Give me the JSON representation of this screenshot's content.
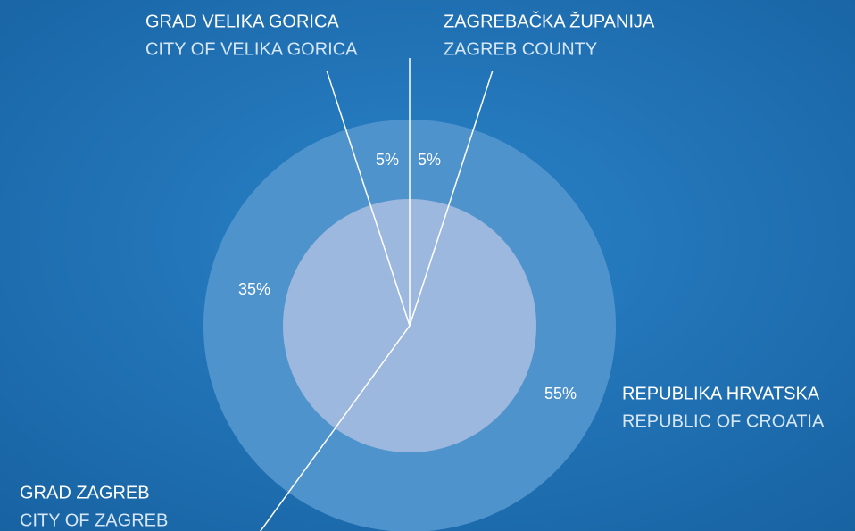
{
  "chart_data": {
    "type": "pie",
    "categories": [
      "ZAGREBAČKA ŽUPANIJA",
      "REPUBLIKA HRVATSKA",
      "GRAD ZAGREB",
      "GRAD VELIKA GORICA"
    ],
    "categories_en": [
      "ZAGREB COUNTY",
      "REPUBLIC OF CROATIA",
      "CITY OF ZAGREB",
      "CITY OF VELIKA GORICA"
    ],
    "values": [
      5,
      55,
      35,
      5
    ],
    "value_labels": [
      "5%",
      "55%",
      "35%",
      "5%"
    ],
    "color": "#4f93cd",
    "inner_color": "#9cb8de"
  }
}
